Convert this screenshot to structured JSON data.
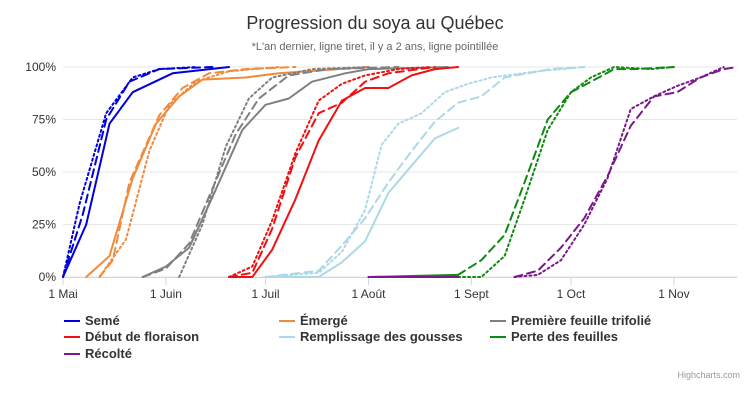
{
  "chart_data": {
    "type": "line",
    "title": "Progression du soya au Québec",
    "subtitle": "*L'an dernier, ligne tiret, il y a 2 ans, ligne pointillée",
    "credits": "Highcharts.com",
    "x_axis": {
      "type": "date",
      "range": [
        "2023-05-01",
        "2023-11-20"
      ],
      "ticks": [
        {
          "date": "2023-05-01",
          "label": "1 Mai"
        },
        {
          "date": "2023-06-01",
          "label": "1 Juin"
        },
        {
          "date": "2023-07-01",
          "label": "1 Juil"
        },
        {
          "date": "2023-08-01",
          "label": "1 Août"
        },
        {
          "date": "2023-09-01",
          "label": "1 Sept"
        },
        {
          "date": "2023-10-01",
          "label": "1 Oct"
        },
        {
          "date": "2023-11-01",
          "label": "1 Nov"
        }
      ]
    },
    "y_axis": {
      "range": [
        0,
        100
      ],
      "ticks": [
        0,
        25,
        50,
        75,
        100
      ],
      "tick_labels": [
        "0%",
        "25%",
        "50%",
        "75%",
        "100%"
      ],
      "grid": true
    },
    "legend": {
      "position": "bottom-left"
    },
    "series": [
      {
        "name": "Semé",
        "color": "#0000dd",
        "dash": "solid",
        "points": [
          [
            "2023-05-01",
            0
          ],
          [
            "2023-05-08",
            25
          ],
          [
            "2023-05-15",
            73
          ],
          [
            "2023-05-22",
            88
          ],
          [
            "2023-06-03",
            97
          ],
          [
            "2023-06-20",
            100
          ]
        ]
      },
      {
        "name": "Semé",
        "color": "#0000dd",
        "dash": "dash",
        "legend": false,
        "points": [
          [
            "2023-05-01",
            0
          ],
          [
            "2023-05-07",
            30
          ],
          [
            "2023-05-14",
            75
          ],
          [
            "2023-05-21",
            93
          ],
          [
            "2023-05-30",
            99
          ],
          [
            "2023-06-15",
            100
          ]
        ]
      },
      {
        "name": "Semé",
        "color": "#0000dd",
        "dash": "dot",
        "legend": false,
        "points": [
          [
            "2023-05-01",
            0
          ],
          [
            "2023-05-06",
            35
          ],
          [
            "2023-05-14",
            78
          ],
          [
            "2023-05-22",
            95
          ],
          [
            "2023-05-30",
            99
          ],
          [
            "2023-06-10",
            100
          ]
        ]
      },
      {
        "name": "Émergé",
        "color": "#f28a3c",
        "dash": "solid",
        "points": [
          [
            "2023-05-08",
            0
          ],
          [
            "2023-05-15",
            10
          ],
          [
            "2023-05-22",
            47
          ],
          [
            "2023-05-29",
            73
          ],
          [
            "2023-06-05",
            86
          ],
          [
            "2023-06-12",
            94
          ],
          [
            "2023-06-25",
            95
          ],
          [
            "2023-07-05",
            97
          ],
          [
            "2023-08-01",
            100
          ]
        ]
      },
      {
        "name": "Émergé",
        "color": "#f28a3c",
        "dash": "dash",
        "legend": false,
        "points": [
          [
            "2023-05-12",
            0
          ],
          [
            "2023-05-16",
            8
          ],
          [
            "2023-05-21",
            45
          ],
          [
            "2023-05-30",
            77
          ],
          [
            "2023-06-06",
            90
          ],
          [
            "2023-06-14",
            97
          ],
          [
            "2023-06-25",
            99
          ],
          [
            "2023-07-10",
            100
          ]
        ]
      },
      {
        "name": "Émergé",
        "color": "#f28a3c",
        "dash": "dot",
        "legend": false,
        "points": [
          [
            "2023-05-12",
            0
          ],
          [
            "2023-05-20",
            18
          ],
          [
            "2023-05-27",
            60
          ],
          [
            "2023-06-02",
            82
          ],
          [
            "2023-06-10",
            93
          ],
          [
            "2023-06-20",
            98
          ],
          [
            "2023-07-05",
            100
          ]
        ]
      },
      {
        "name": "Première feuille trifolié",
        "color": "#808080",
        "dash": "solid",
        "points": [
          [
            "2023-05-25",
            0
          ],
          [
            "2023-06-01",
            5
          ],
          [
            "2023-06-08",
            14
          ],
          [
            "2023-06-15",
            38
          ],
          [
            "2023-06-24",
            70
          ],
          [
            "2023-07-01",
            82
          ],
          [
            "2023-07-08",
            85
          ],
          [
            "2023-07-15",
            93
          ],
          [
            "2023-07-25",
            97
          ],
          [
            "2023-08-01",
            99
          ],
          [
            "2023-08-25",
            100
          ]
        ]
      },
      {
        "name": "Première feuille trifolié",
        "color": "#808080",
        "dash": "dash",
        "legend": false,
        "points": [
          [
            "2023-05-25",
            0
          ],
          [
            "2023-06-01",
            4
          ],
          [
            "2023-06-08",
            16
          ],
          [
            "2023-06-15",
            42
          ],
          [
            "2023-06-22",
            68
          ],
          [
            "2023-06-29",
            85
          ],
          [
            "2023-07-08",
            96
          ],
          [
            "2023-07-20",
            99
          ],
          [
            "2023-08-10",
            100
          ]
        ]
      },
      {
        "name": "Première feuille trifolié",
        "color": "#808080",
        "dash": "dot",
        "legend": false,
        "points": [
          [
            "2023-06-05",
            0
          ],
          [
            "2023-06-12",
            25
          ],
          [
            "2023-06-19",
            62
          ],
          [
            "2023-06-26",
            85
          ],
          [
            "2023-07-03",
            95
          ],
          [
            "2023-07-15",
            99
          ],
          [
            "2023-08-01",
            100
          ]
        ]
      },
      {
        "name": "Début de floraison",
        "color": "#ee1111",
        "dash": "solid",
        "points": [
          [
            "2023-06-20",
            0
          ],
          [
            "2023-06-27",
            0
          ],
          [
            "2023-07-03",
            13
          ],
          [
            "2023-07-10",
            37
          ],
          [
            "2023-07-17",
            65
          ],
          [
            "2023-07-24",
            84
          ],
          [
            "2023-07-31",
            90
          ],
          [
            "2023-08-07",
            90
          ],
          [
            "2023-08-14",
            96
          ],
          [
            "2023-08-21",
            99
          ],
          [
            "2023-08-28",
            100
          ]
        ]
      },
      {
        "name": "Début de floraison",
        "color": "#ee1111",
        "dash": "dash",
        "legend": false,
        "points": [
          [
            "2023-06-20",
            0
          ],
          [
            "2023-06-27",
            2
          ],
          [
            "2023-07-03",
            23
          ],
          [
            "2023-07-10",
            57
          ],
          [
            "2023-07-17",
            78
          ],
          [
            "2023-07-24",
            83
          ],
          [
            "2023-07-31",
            93
          ],
          [
            "2023-08-07",
            97
          ],
          [
            "2023-08-21",
            100
          ]
        ]
      },
      {
        "name": "Début de floraison",
        "color": "#ee1111",
        "dash": "dot",
        "legend": false,
        "points": [
          [
            "2023-06-20",
            0
          ],
          [
            "2023-06-27",
            5
          ],
          [
            "2023-07-03",
            27
          ],
          [
            "2023-07-10",
            59
          ],
          [
            "2023-07-17",
            84
          ],
          [
            "2023-07-24",
            92
          ],
          [
            "2023-07-31",
            96
          ],
          [
            "2023-08-10",
            99
          ],
          [
            "2023-08-20",
            100
          ]
        ]
      },
      {
        "name": "Remplissage des gousses",
        "color": "#add8e6",
        "dash": "solid",
        "points": [
          [
            "2023-07-01",
            0
          ],
          [
            "2023-07-17",
            0
          ],
          [
            "2023-07-24",
            7
          ],
          [
            "2023-07-31",
            17
          ],
          [
            "2023-08-07",
            40
          ],
          [
            "2023-08-14",
            53
          ],
          [
            "2023-08-21",
            66
          ],
          [
            "2023-08-28",
            71
          ]
        ]
      },
      {
        "name": "Remplissage des gousses",
        "color": "#add8e6",
        "dash": "dash",
        "legend": false,
        "points": [
          [
            "2023-07-01",
            0
          ],
          [
            "2023-07-17",
            3
          ],
          [
            "2023-07-24",
            15
          ],
          [
            "2023-07-31",
            28
          ],
          [
            "2023-08-07",
            45
          ],
          [
            "2023-08-14",
            60
          ],
          [
            "2023-08-21",
            74
          ],
          [
            "2023-08-28",
            83
          ],
          [
            "2023-09-04",
            86
          ],
          [
            "2023-09-11",
            95
          ],
          [
            "2023-09-25",
            99
          ],
          [
            "2023-10-05",
            100
          ]
        ]
      },
      {
        "name": "Remplissage des gousses",
        "color": "#add8e6",
        "dash": "dot",
        "legend": false,
        "points": [
          [
            "2023-07-01",
            0
          ],
          [
            "2023-07-17",
            2
          ],
          [
            "2023-07-24",
            12
          ],
          [
            "2023-07-31",
            32
          ],
          [
            "2023-08-05",
            63
          ],
          [
            "2023-08-10",
            73
          ],
          [
            "2023-08-17",
            78
          ],
          [
            "2023-08-24",
            88
          ],
          [
            "2023-08-31",
            92
          ],
          [
            "2023-09-07",
            95
          ],
          [
            "2023-09-21",
            98
          ],
          [
            "2023-10-05",
            100
          ]
        ]
      },
      {
        "name": "Perte des feuilles",
        "color": "#118811",
        "dash": "solid",
        "points": [
          [
            "2023-08-01",
            0
          ],
          [
            "2023-08-28",
            1
          ]
        ]
      },
      {
        "name": "Perte des feuilles",
        "color": "#118811",
        "dash": "dash",
        "legend": false,
        "points": [
          [
            "2023-08-28",
            1
          ],
          [
            "2023-09-04",
            8
          ],
          [
            "2023-09-11",
            20
          ],
          [
            "2023-09-17",
            45
          ],
          [
            "2023-09-24",
            75
          ],
          [
            "2023-10-01",
            88
          ],
          [
            "2023-10-07",
            93
          ],
          [
            "2023-10-14",
            99
          ],
          [
            "2023-10-20",
            99
          ],
          [
            "2023-11-01",
            100
          ]
        ]
      },
      {
        "name": "Perte des feuilles",
        "color": "#118811",
        "dash": "dot",
        "legend": false,
        "points": [
          [
            "2023-08-28",
            0
          ],
          [
            "2023-09-04",
            0
          ],
          [
            "2023-09-11",
            10
          ],
          [
            "2023-09-17",
            37
          ],
          [
            "2023-09-24",
            70
          ],
          [
            "2023-10-01",
            88
          ],
          [
            "2023-10-07",
            95
          ],
          [
            "2023-10-14",
            100
          ],
          [
            "2023-10-25",
            99
          ],
          [
            "2023-11-01",
            100
          ]
        ]
      },
      {
        "name": "Récolté",
        "color": "#7a1a8a",
        "dash": "solid",
        "points": [
          [
            "2023-08-01",
            0
          ],
          [
            "2023-08-28",
            0
          ]
        ]
      },
      {
        "name": "Récolté",
        "color": "#7a1a8a",
        "dash": "dash",
        "legend": false,
        "points": [
          [
            "2023-09-14",
            0
          ],
          [
            "2023-09-21",
            3
          ],
          [
            "2023-09-28",
            14
          ],
          [
            "2023-10-05",
            28
          ],
          [
            "2023-10-12",
            48
          ],
          [
            "2023-10-19",
            72
          ],
          [
            "2023-10-26",
            86
          ],
          [
            "2023-11-02",
            88
          ],
          [
            "2023-11-09",
            95
          ],
          [
            "2023-11-16",
            99
          ],
          [
            "2023-11-20",
            100
          ]
        ]
      },
      {
        "name": "Récolté",
        "color": "#7a1a8a",
        "dash": "dot",
        "legend": false,
        "points": [
          [
            "2023-09-14",
            0
          ],
          [
            "2023-09-21",
            1
          ],
          [
            "2023-09-28",
            8
          ],
          [
            "2023-10-05",
            25
          ],
          [
            "2023-10-12",
            47
          ],
          [
            "2023-10-19",
            80
          ],
          [
            "2023-10-26",
            86
          ],
          [
            "2023-11-02",
            91
          ],
          [
            "2023-11-09",
            95
          ],
          [
            "2023-11-16",
            100
          ]
        ]
      }
    ]
  }
}
